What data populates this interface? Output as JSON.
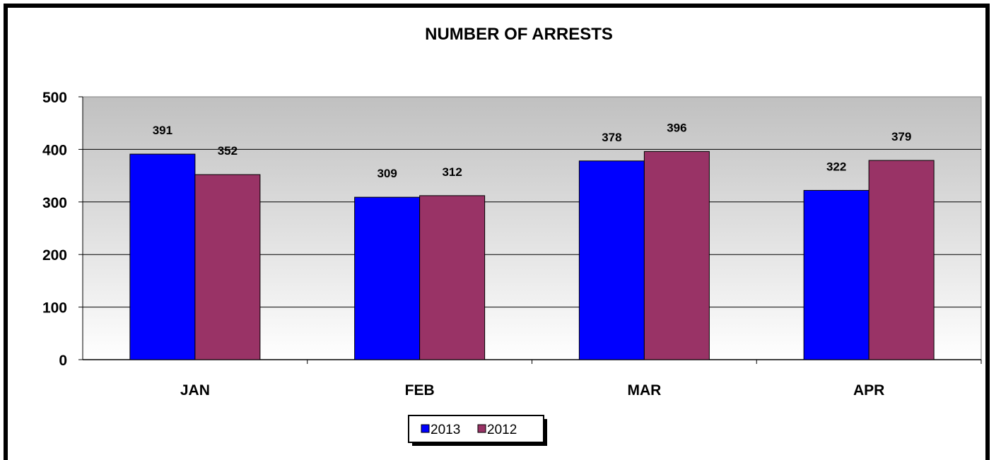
{
  "chart_data": {
    "type": "bar",
    "title": "NUMBER OF ARRESTS",
    "xlabel": "",
    "ylabel": "",
    "categories": [
      "JAN",
      "FEB",
      "MAR",
      "APR"
    ],
    "series": [
      {
        "name": "2013",
        "values": [
          391,
          309,
          378,
          322
        ],
        "color": "#0000FF"
      },
      {
        "name": "2012",
        "values": [
          352,
          312,
          396,
          379
        ],
        "color": "#993366"
      }
    ],
    "ylim": [
      0,
      500
    ],
    "yticks": [
      0,
      100,
      200,
      300,
      400,
      500
    ],
    "grid": true,
    "data_labels": true,
    "legend": "bottom-center",
    "plot_background": "gray-gradient"
  }
}
